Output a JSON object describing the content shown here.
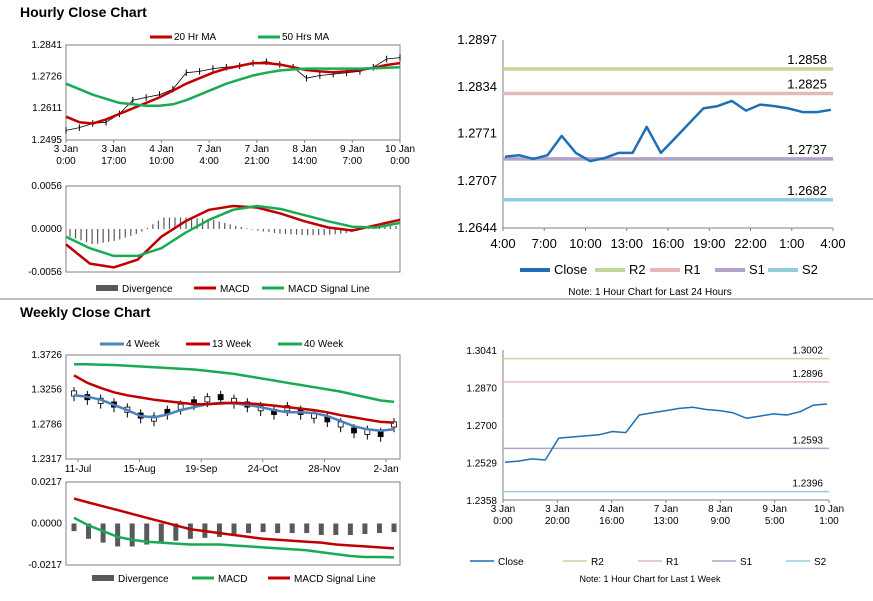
{
  "sections": {
    "hourly_title": "Hourly Close Chart",
    "weekly_title": "Weekly Close Chart"
  },
  "colors": {
    "red": "#c00000",
    "green": "#1aaa55",
    "blue": "#1f6fb5",
    "steelblue": "#4f81bd",
    "gray": "#595959",
    "r2": "#c3d69b",
    "r1": "#e6b9b8",
    "s1": "#b3a2c7",
    "s2": "#93cddd",
    "axis": "#808080"
  },
  "chart_data": [
    {
      "id": "hourly_price",
      "type": "line",
      "title": "",
      "ylim": [
        1.2495,
        1.2841
      ],
      "y_ticks": [
        "1.2841",
        "1.2726",
        "1.2611",
        "1.2495"
      ],
      "x_ticks": [
        "3 Jan\n0:00",
        "3 Jan\n17:00",
        "4 Jan\n10:00",
        "7 Jan\n4:00",
        "7 Jan\n21:00",
        "8 Jan\n14:00",
        "9 Jan\n7:00",
        "10 Jan\n0:00"
      ],
      "legend": [
        "20 Hr MA",
        "50 Hrs MA"
      ],
      "series": [
        {
          "name": "Price",
          "values": [
            1.253,
            1.254,
            1.2555,
            1.256,
            1.259,
            1.264,
            1.265,
            1.266,
            1.268,
            1.274,
            1.2745,
            1.2755,
            1.276,
            1.2765,
            1.2775,
            1.278,
            1.277,
            1.276,
            1.272,
            1.273,
            1.2735,
            1.274,
            1.2745,
            1.276,
            1.279,
            1.2795
          ]
        },
        {
          "name": "20 Hr MA",
          "values": [
            1.258,
            1.256,
            1.2555,
            1.257,
            1.259,
            1.261,
            1.263,
            1.265,
            1.2675,
            1.27,
            1.272,
            1.274,
            1.2755,
            1.2765,
            1.2775,
            1.2775,
            1.277,
            1.276,
            1.275,
            1.2745,
            1.2742,
            1.2745,
            1.275,
            1.2758,
            1.2768,
            1.2775
          ]
        },
        {
          "name": "50 Hrs MA",
          "values": [
            1.27,
            1.268,
            1.266,
            1.2645,
            1.263,
            1.2625,
            1.262,
            1.262,
            1.2625,
            1.264,
            1.266,
            1.268,
            1.27,
            1.2715,
            1.273,
            1.274,
            1.2748,
            1.2752,
            1.2755,
            1.2755,
            1.2755,
            1.2755,
            1.2755,
            1.2756,
            1.2758,
            1.276
          ]
        }
      ]
    },
    {
      "id": "hourly_macd",
      "type": "line",
      "ylim": [
        -0.0056,
        0.0056
      ],
      "y_ticks": [
        "0.0056",
        "0.0000",
        "-0.0056"
      ],
      "legend": [
        "Divergence",
        "MACD",
        "MACD Signal Line"
      ],
      "series": [
        {
          "name": "MACD",
          "values": [
            -0.002,
            -0.0045,
            -0.005,
            -0.004,
            -0.001,
            0.001,
            0.0025,
            0.003,
            0.0028,
            0.002,
            0.001,
            0.0002,
            -0.0002,
            0.0005,
            0.0012
          ]
        },
        {
          "name": "MACD Signal Line",
          "values": [
            -0.001,
            -0.0025,
            -0.0035,
            -0.0035,
            -0.0025,
            -0.0005,
            0.0012,
            0.0025,
            0.003,
            0.0026,
            0.0018,
            0.001,
            0.0003,
            0.0002,
            0.0008
          ]
        },
        {
          "name": "Divergence",
          "values": [
            -0.001,
            -0.002,
            -0.0015,
            -0.0005,
            0.0015,
            0.0015,
            0.0013,
            0.0005,
            -0.0002,
            -0.0006,
            -0.0008,
            -0.0008,
            -0.0005,
            0.0003,
            0.0004
          ]
        }
      ]
    },
    {
      "id": "hourly_levels",
      "type": "line",
      "ylim": [
        1.2644,
        1.2897
      ],
      "y_ticks": [
        "1.2897",
        "1.2834",
        "1.2771",
        "1.2707",
        "1.2644"
      ],
      "x_ticks": [
        "4:00",
        "7:00",
        "10:00",
        "13:00",
        "16:00",
        "19:00",
        "22:00",
        "1:00",
        "4:00"
      ],
      "levels": [
        {
          "name": "R2",
          "value": 1.2858,
          "label": "1.2858"
        },
        {
          "name": "R1",
          "value": 1.2825,
          "label": "1.2825"
        },
        {
          "name": "S1",
          "value": 1.2737,
          "label": "1.2737"
        },
        {
          "name": "S2",
          "value": 1.2682,
          "label": "1.2682"
        }
      ],
      "series": [
        {
          "name": "Close",
          "values": [
            1.274,
            1.2742,
            1.2737,
            1.2742,
            1.2768,
            1.2745,
            1.2734,
            1.2738,
            1.2745,
            1.2745,
            1.278,
            1.2745,
            1.2765,
            1.2785,
            1.2805,
            1.2808,
            1.2815,
            1.2802,
            1.281,
            1.2808,
            1.2805,
            1.28,
            1.28,
            1.2803
          ]
        }
      ],
      "legend": [
        "Close",
        "R2",
        "R1",
        "S1",
        "S2"
      ],
      "note": "Note: 1 Hour Chart for Last 24 Hours"
    },
    {
      "id": "weekly_price",
      "type": "line",
      "ylim": [
        1.2317,
        1.3726
      ],
      "y_ticks": [
        "1.3726",
        "1.3256",
        "1.2786",
        "1.2317"
      ],
      "x_ticks": [
        "11-Jul",
        "15-Aug",
        "19-Sep",
        "24-Oct",
        "28-Nov",
        "2-Jan"
      ],
      "legend": [
        "4 Week",
        "13 Week",
        "40 Week"
      ],
      "series": [
        {
          "name": "4 Week",
          "values": [
            1.318,
            1.316,
            1.312,
            1.305,
            1.298,
            1.29,
            1.288,
            1.292,
            1.298,
            1.302,
            1.306,
            1.308,
            1.307,
            1.305,
            1.302,
            1.298,
            1.295,
            1.295,
            1.294,
            1.29,
            1.283,
            1.276,
            1.272,
            1.27,
            1.272
          ]
        },
        {
          "name": "13 Week",
          "values": [
            1.345,
            1.335,
            1.328,
            1.322,
            1.318,
            1.315,
            1.312,
            1.31,
            1.308,
            1.306,
            1.306,
            1.307,
            1.308,
            1.307,
            1.306,
            1.304,
            1.302,
            1.3,
            1.298,
            1.295,
            1.291,
            1.288,
            1.285,
            1.282,
            1.281
          ]
        },
        {
          "name": "40 Week",
          "values": [
            1.36,
            1.36,
            1.3595,
            1.359,
            1.358,
            1.357,
            1.356,
            1.355,
            1.354,
            1.353,
            1.351,
            1.349,
            1.347,
            1.344,
            1.341,
            1.338,
            1.335,
            1.332,
            1.329,
            1.326,
            1.323,
            1.319,
            1.315,
            1.311,
            1.309
          ]
        },
        {
          "name": "Price",
          "values": [
            1.32,
            1.315,
            1.31,
            1.305,
            1.298,
            1.29,
            1.286,
            1.295,
            1.302,
            1.308,
            1.312,
            1.315,
            1.31,
            1.305,
            1.3,
            1.295,
            1.3,
            1.295,
            1.29,
            1.285,
            1.278,
            1.27,
            1.268,
            1.265,
            1.278
          ]
        }
      ]
    },
    {
      "id": "weekly_macd",
      "type": "line",
      "ylim": [
        -0.0217,
        0.0217
      ],
      "y_ticks": [
        "0.0217",
        "0.0000",
        "-0.0217"
      ],
      "legend": [
        "Divergence",
        "MACD",
        "MACD Signal Line"
      ],
      "series": [
        {
          "name": "MACD",
          "values": [
            0.003,
            -0.001,
            -0.004,
            -0.007,
            -0.0085,
            -0.0095,
            -0.01,
            -0.0105,
            -0.011,
            -0.011,
            -0.011,
            -0.0115,
            -0.012,
            -0.0125,
            -0.013,
            -0.0135,
            -0.014,
            -0.015,
            -0.016,
            -0.017,
            -0.0175,
            -0.0175,
            -0.0177
          ]
        },
        {
          "name": "MACD Signal Line",
          "values": [
            0.013,
            0.011,
            0.009,
            0.007,
            0.005,
            0.003,
            0.001,
            -0.001,
            -0.003,
            -0.004,
            -0.005,
            -0.006,
            -0.007,
            -0.008,
            -0.0085,
            -0.009,
            -0.0095,
            -0.01,
            -0.011,
            -0.0115,
            -0.012,
            -0.0125,
            -0.013
          ]
        },
        {
          "name": "Divergence",
          "values": [
            -0.004,
            -0.008,
            -0.01,
            -0.012,
            -0.012,
            -0.011,
            -0.01,
            -0.009,
            -0.008,
            -0.0075,
            -0.007,
            -0.006,
            -0.005,
            -0.0045,
            -0.005,
            -0.005,
            -0.005,
            -0.006,
            -0.006,
            -0.006,
            -0.0055,
            -0.005,
            -0.0045
          ]
        }
      ]
    },
    {
      "id": "weekly_levels",
      "type": "line",
      "ylim": [
        1.2358,
        1.3041
      ],
      "y_ticks": [
        "1.3041",
        "1.2870",
        "1.2700",
        "1.2529",
        "1.2358"
      ],
      "x_ticks": [
        "3 Jan\n0:00",
        "3 Jan\n20:00",
        "4 Jan\n16:00",
        "7 Jan\n13:00",
        "8 Jan\n9:00",
        "9 Jan\n5:00",
        "10 Jan\n1:00"
      ],
      "levels": [
        {
          "name": "R2",
          "value": 1.3002,
          "label": "1.3002"
        },
        {
          "name": "R1",
          "value": 1.2896,
          "label": "1.2896"
        },
        {
          "name": "S1",
          "value": 1.2593,
          "label": "1.2593"
        },
        {
          "name": "S2",
          "value": 1.2396,
          "label": "1.2396"
        }
      ],
      "series": [
        {
          "name": "Close",
          "values": [
            1.253,
            1.2535,
            1.2545,
            1.254,
            1.264,
            1.2645,
            1.265,
            1.2655,
            1.267,
            1.2665,
            1.2745,
            1.2755,
            1.2765,
            1.2775,
            1.278,
            1.277,
            1.2765,
            1.2755,
            1.273,
            1.274,
            1.275,
            1.2745,
            1.276,
            1.279,
            1.2795
          ]
        }
      ],
      "legend": [
        "Close",
        "R2",
        "R1",
        "S1",
        "S2"
      ],
      "note": "Note: 1 Hour Chart for Last 1 Week"
    }
  ]
}
